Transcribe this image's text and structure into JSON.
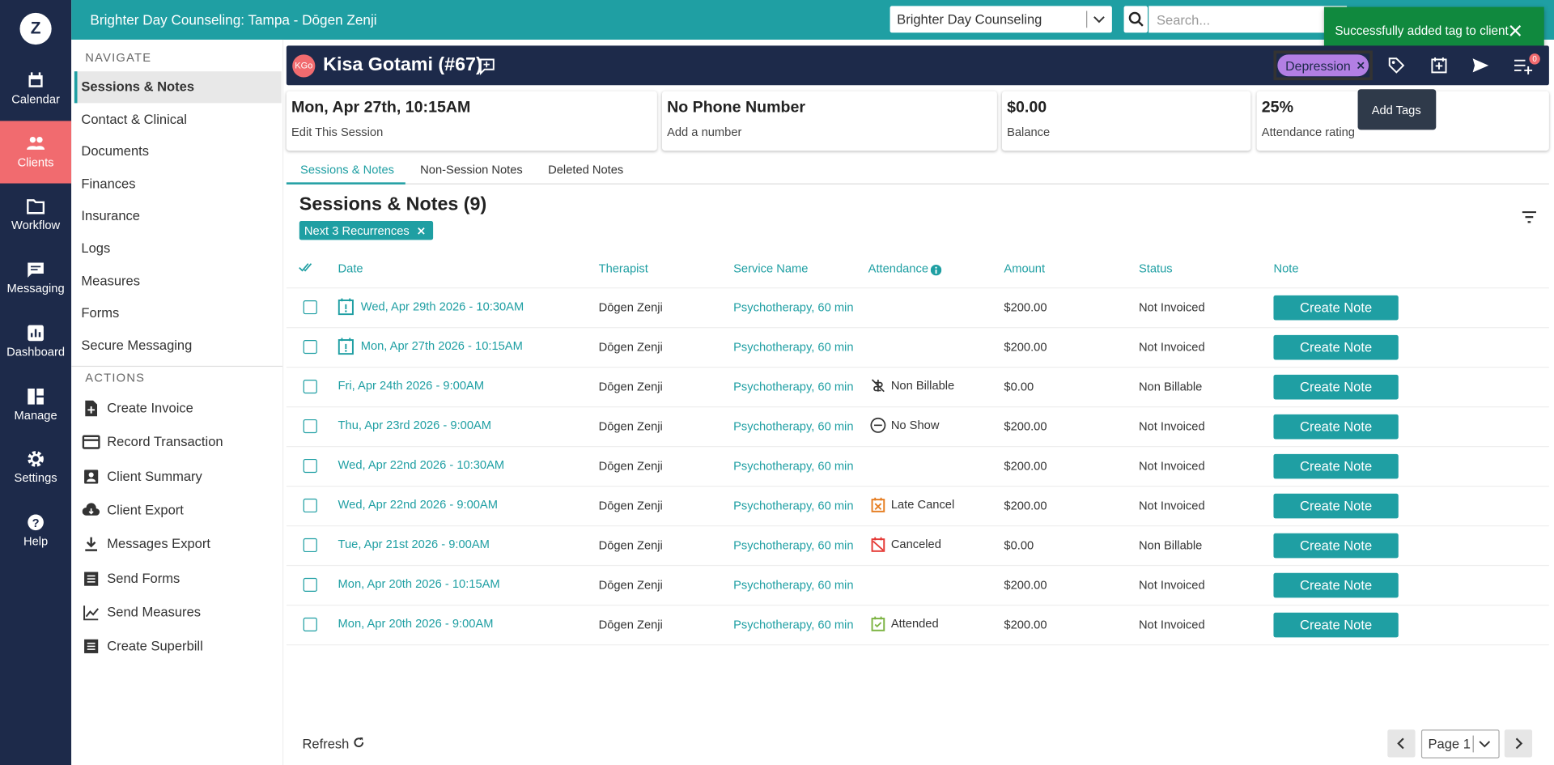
{
  "header": {
    "org": "Brighter Day Counseling: Tampa - Dōgen Zenji",
    "practice": "Brighter Day Counseling",
    "search_placeholder": "Search..."
  },
  "toast": "Successfully added tag to client",
  "nav": {
    "logo": "Z",
    "items": [
      "Calendar",
      "Clients",
      "Workflow",
      "Messaging",
      "Dashboard",
      "Manage",
      "Settings",
      "Help"
    ]
  },
  "sidebar": {
    "navigate_heading": "NAVIGATE",
    "navigate": [
      "Sessions & Notes",
      "Contact & Clinical",
      "Documents",
      "Finances",
      "Insurance",
      "Logs",
      "Measures",
      "Forms",
      "Secure Messaging"
    ],
    "actions_heading": "ACTIONS",
    "actions": [
      "Create Invoice",
      "Record Transaction",
      "Client Summary",
      "Client Export",
      "Messages Export",
      "Send Forms",
      "Send Measures",
      "Create Superbill"
    ]
  },
  "client": {
    "initials": "KGo",
    "name": "Kisa Gotami (#67)",
    "tag": "Depression",
    "tooltip": "Add Tags",
    "badge": "0"
  },
  "cards": [
    {
      "value": "Mon, Apr 27th, 10:15AM",
      "label": "Edit This Session"
    },
    {
      "value": "No Phone Number",
      "label": "Add a number"
    },
    {
      "value": "$0.00",
      "label": "Balance"
    },
    {
      "value": "25%",
      "label": "Attendance rating"
    }
  ],
  "tabs": [
    "Sessions & Notes",
    "Non-Session Notes",
    "Deleted Notes"
  ],
  "section": {
    "title": "Sessions & Notes (9)",
    "filter": "Next 3 Recurrences"
  },
  "table": {
    "columns": [
      "Date",
      "Therapist",
      "Service Name",
      "Attendance",
      "Amount",
      "Status",
      "Note"
    ],
    "rows": [
      {
        "date": "Wed, Apr 29th 2026 - 10:30AM",
        "therapist": "Dōgen Zenji",
        "service": "Psychotherapy, 60 min",
        "amount": "$200.00",
        "status": "Not Invoiced",
        "note": "Create Note"
      },
      {
        "date": "Mon, Apr 27th 2026 - 10:15AM",
        "therapist": "Dōgen Zenji",
        "service": "Psychotherapy, 60 min",
        "amount": "$200.00",
        "status": "Not Invoiced",
        "note": "Create Note"
      },
      {
        "date": "Fri, Apr 24th 2026 - 9:00AM",
        "therapist": "Dōgen Zenji",
        "service": "Psychotherapy, 60 min",
        "attendance": "Non Billable",
        "amount": "$0.00",
        "status": "Non Billable",
        "note": "Create Note"
      },
      {
        "date": "Thu, Apr 23rd 2026 - 9:00AM",
        "therapist": "Dōgen Zenji",
        "service": "Psychotherapy, 60 min",
        "attendance": "No Show",
        "amount": "$200.00",
        "status": "Not Invoiced",
        "note": "Create Note"
      },
      {
        "date": "Wed, Apr 22nd 2026 - 10:30AM",
        "therapist": "Dōgen Zenji",
        "service": "Psychotherapy, 60 min",
        "amount": "$200.00",
        "status": "Not Invoiced",
        "note": "Create Note"
      },
      {
        "date": "Wed, Apr 22nd 2026 - 9:00AM",
        "therapist": "Dōgen Zenji",
        "service": "Psychotherapy, 60 min",
        "attendance": "Late Cancel",
        "amount": "$200.00",
        "status": "Not Invoiced",
        "note": "Create Note"
      },
      {
        "date": "Tue, Apr 21st 2026 - 9:00AM",
        "therapist": "Dōgen Zenji",
        "service": "Psychotherapy, 60 min",
        "attendance": "Canceled",
        "amount": "$0.00",
        "status": "Non Billable",
        "note": "Create Note"
      },
      {
        "date": "Mon, Apr 20th 2026 - 10:15AM",
        "therapist": "Dōgen Zenji",
        "service": "Psychotherapy, 60 min",
        "amount": "$200.00",
        "status": "Not Invoiced",
        "note": "Create Note"
      },
      {
        "date": "Mon, Apr 20th 2026 - 9:00AM",
        "therapist": "Dōgen Zenji",
        "service": "Psychotherapy, 60 min",
        "attendance": "Attended",
        "amount": "$200.00",
        "status": "Not Invoiced",
        "note": "Create Note"
      }
    ]
  },
  "footer": {
    "refresh": "Refresh",
    "page": "Page 1"
  }
}
